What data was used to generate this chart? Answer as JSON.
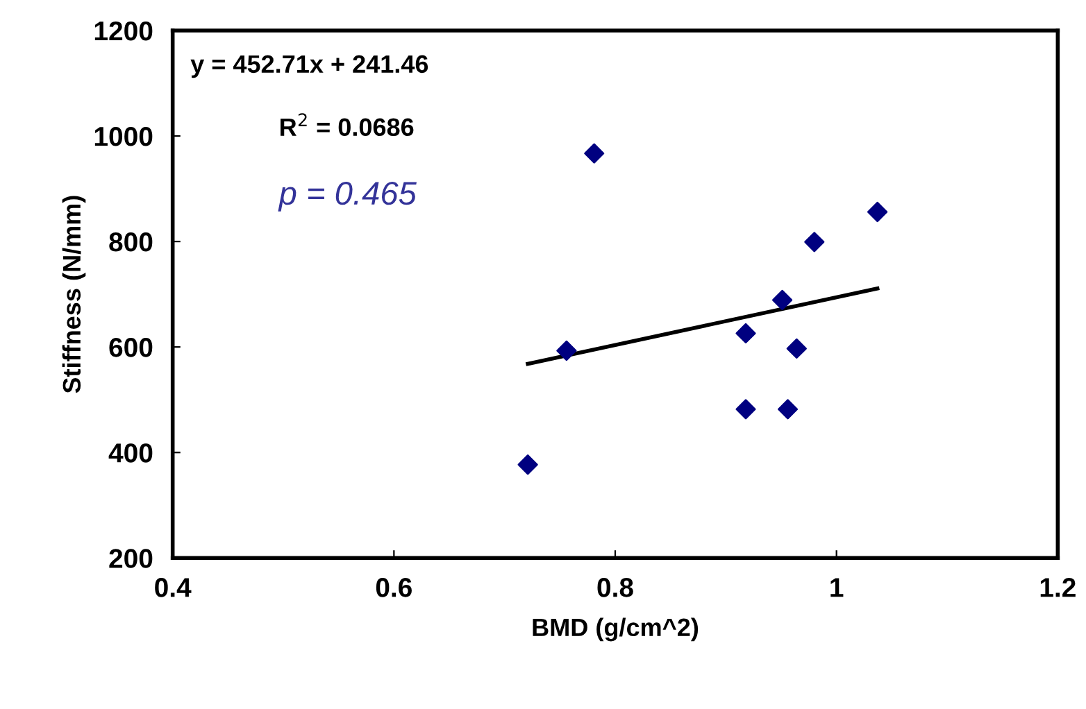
{
  "chart_data": {
    "type": "scatter",
    "xlabel": "BMD (g/cm^2)",
    "ylabel": "Stiffness (N/mm)",
    "xlim": [
      0.4,
      1.2
    ],
    "xticks": [
      0.4,
      0.6,
      0.8,
      1,
      1.2
    ],
    "ylim": [
      200,
      1200
    ],
    "yticks": [
      200,
      400,
      600,
      800,
      1000,
      1200
    ],
    "grid": false,
    "legend": false,
    "marker": "diamond",
    "series": [
      {
        "color": "#000080",
        "x": [
          0.721,
          0.756,
          0.781,
          0.918,
          0.918,
          0.951,
          0.956,
          0.964,
          0.98,
          1.037
        ],
        "values": [
          377,
          593,
          967,
          626,
          482,
          689,
          482,
          597,
          799,
          856
        ]
      },
      {
        "type": "line",
        "color": "#000000",
        "marker": "none",
        "line_style": "solid",
        "x": [
          0.721,
          1.037
        ],
        "values": [
          568,
          711
        ]
      }
    ],
    "annotations": [
      "y = 452.71x + 241.46",
      "R$^{2}$ = 0.0686",
      "p = 0.465"
    ]
  }
}
